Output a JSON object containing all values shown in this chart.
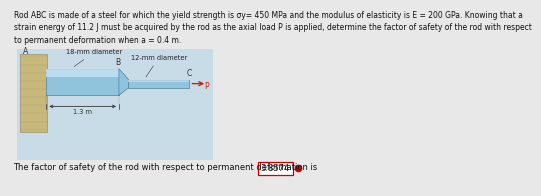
{
  "title_line1": "Rod ABC is made of a steel for which the yield strength is σy= 450 MPa and the modulus of elasticity is E = 200 GPa. Knowing that a",
  "title_line2": "strain energy of 11.2 J must be acquired by the rod as the axial load P is applied, determine the factor of safety of the rod with respect",
  "title_line3": "to permanent deformation when a = 0.4 m.",
  "figure_bg": "#e8e8e8",
  "diagram_bg": "#c8dce8",
  "wall_color": "#c8b87a",
  "wall_edge": "#aaa080",
  "rod_color": "#90c4dc",
  "rod_highlight": "#c8e4f4",
  "rod_edge": "#5080a0",
  "result_text": "The factor of safety of the rod with respect to permanent deformation is",
  "result_value": "3.8574",
  "result_box_color": "#ffffff",
  "result_box_edge": "#cc0000",
  "dot_color": "#cc0000",
  "label_18mm": "18-mm diameter",
  "label_12mm": "12-mm diameter",
  "label_B": "B",
  "label_C": "C",
  "label_A": "A",
  "label_13m": "1.3 m",
  "label_P": "P",
  "title_fontsize": 5.5,
  "result_fontsize": 6.0
}
